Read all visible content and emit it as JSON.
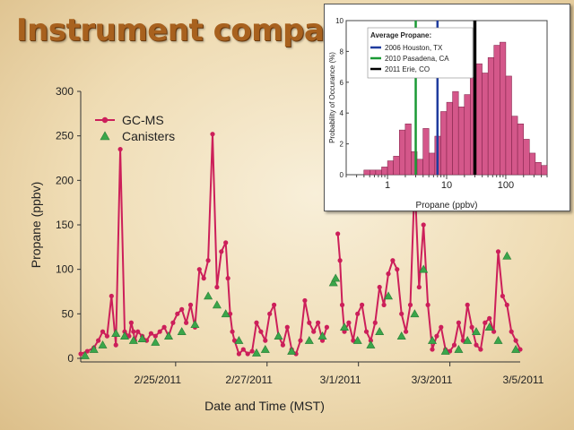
{
  "slide": {
    "title": "Instrument comparison"
  },
  "colors": {
    "gcms": "#cc1f5a",
    "canisters": "#3aa64a",
    "canister_edge": "#2c7d38",
    "hist_fill": "#d4578a",
    "hist_edge": "#7a1f45"
  },
  "chart_data": [
    {
      "type": "line",
      "title": "",
      "xlabel": "Date and Time (MST)",
      "ylabel": "Propane (ppbv)",
      "ylim": [
        0,
        300
      ],
      "xlim": [
        0,
        100
      ],
      "yticks": [
        0,
        50,
        100,
        150,
        200,
        250,
        300
      ],
      "xtick_positions": [
        21.6,
        42.4,
        63.2,
        84.0
      ],
      "xtick_labels": [
        "2/25/2011",
        "2/27/2011",
        "3/1/2011",
        "3/3/2011",
        "3/5/2011"
      ],
      "xtick_label_positions": [
        17.5,
        38.3,
        59.1,
        79.9,
        100.7
      ],
      "legend": {
        "position": "top-left",
        "entries": [
          "GC-MS",
          "Canisters"
        ]
      },
      "series": [
        {
          "name": "GC-MS",
          "segments": [
            {
              "x": [
                0,
                1.5,
                3,
                4,
                5,
                6,
                7,
                8,
                9,
                10,
                11,
                11.5,
                12,
                12.3,
                13,
                14,
                15,
                16,
                17,
                18,
                19,
                20,
                21,
                22,
                23,
                24,
                25,
                26,
                27,
                28,
                29,
                30,
                31,
                32,
                33,
                33.5,
                34,
                34.5,
                35,
                36,
                37,
                38,
                39,
                40,
                41,
                42,
                43,
                44,
                45,
                46,
                47,
                48,
                49,
                50,
                51,
                52,
                53,
                54,
                55,
                56
              ],
              "y": [
                5,
                8,
                12,
                20,
                30,
                25,
                70,
                15,
                235,
                30,
                25,
                40,
                30,
                20,
                30,
                25,
                20,
                28,
                25,
                30,
                35,
                25,
                40,
                50,
                55,
                40,
                60,
                35,
                100,
                90,
                110,
                252,
                80,
                120,
                130,
                90,
                50,
                30,
                20,
                5,
                10,
                5,
                8,
                40,
                30,
                20,
                50,
                60,
                25,
                15,
                35,
                10,
                5,
                20,
                65,
                40,
                30,
                40,
                20,
                35
              ]
            },
            {
              "x": [
                58.5,
                59,
                59.5,
                60,
                61,
                62,
                63,
                64,
                65,
                66,
                67,
                68,
                69,
                70,
                71,
                72,
                73,
                74,
                75,
                76,
                77,
                78,
                79,
                80,
                81,
                82,
                83,
                84,
                85,
                86,
                87,
                88,
                89,
                90,
                91,
                92,
                93,
                94,
                95,
                96,
                97,
                98,
                99,
                100
              ],
              "y": [
                140,
                110,
                60,
                30,
                40,
                20,
                50,
                60,
                30,
                20,
                40,
                80,
                60,
                95,
                110,
                100,
                50,
                30,
                60,
                200,
                80,
                150,
                60,
                10,
                25,
                35,
                10,
                8,
                15,
                40,
                20,
                60,
                35,
                15,
                10,
                40,
                45,
                30,
                120,
                70,
                60,
                30,
                20,
                10
              ]
            }
          ]
        },
        {
          "name": "Canisters",
          "x": [
            1,
            3,
            5,
            8,
            10,
            12,
            14,
            17,
            20,
            23,
            26,
            29,
            31,
            33,
            36,
            40,
            42,
            45,
            48,
            52,
            55,
            57.5,
            58,
            60,
            63,
            66,
            68,
            70,
            73,
            76,
            78,
            80,
            83,
            86,
            88,
            90,
            93,
            95,
            97,
            99
          ],
          "y": [
            3,
            10,
            15,
            28,
            25,
            20,
            22,
            18,
            25,
            30,
            38,
            70,
            60,
            50,
            20,
            6,
            10,
            25,
            8,
            20,
            25,
            85,
            90,
            35,
            20,
            15,
            30,
            70,
            25,
            50,
            100,
            20,
            8,
            10,
            20,
            30,
            35,
            20,
            115,
            10
          ]
        }
      ]
    },
    {
      "type": "bar",
      "title": "",
      "xlabel": "Propane (ppbv)",
      "ylabel": "Probability of Occurance (%)",
      "xscale": "log",
      "xlim": [
        0.2,
        500
      ],
      "ylim": [
        0,
        10
      ],
      "yticks": [
        0,
        2,
        4,
        6,
        8,
        10
      ],
      "xticks": [
        1,
        10,
        100
      ],
      "xtick_labels": [
        "1",
        "10",
        "100"
      ],
      "bin_log_start": -0.6,
      "bin_log_width": 0.1,
      "values": [
        0,
        0,
        0.3,
        0.3,
        0.3,
        0.5,
        0.9,
        1.2,
        2.9,
        3.3,
        1.5,
        1.0,
        3.0,
        1.4,
        2.5,
        4.1,
        4.7,
        5.4,
        4.4,
        5.2,
        6.3,
        7.2,
        6.6,
        7.6,
        8.4,
        8.6,
        6.4,
        3.8,
        3.3,
        2.3,
        1.4,
        0.8,
        0.6,
        0
      ],
      "legend": {
        "title": "Average Propane:",
        "position": "top-left",
        "entries": [
          {
            "label": "2006 Houston, TX",
            "x": 7,
            "color": "#1f3c9e"
          },
          {
            "label": "2010 Pasadena, CA",
            "x": 3,
            "color": "#1a9a35"
          },
          {
            "label": "2011 Erie, CO",
            "x": 30,
            "color": "#000000"
          }
        ]
      }
    }
  ]
}
